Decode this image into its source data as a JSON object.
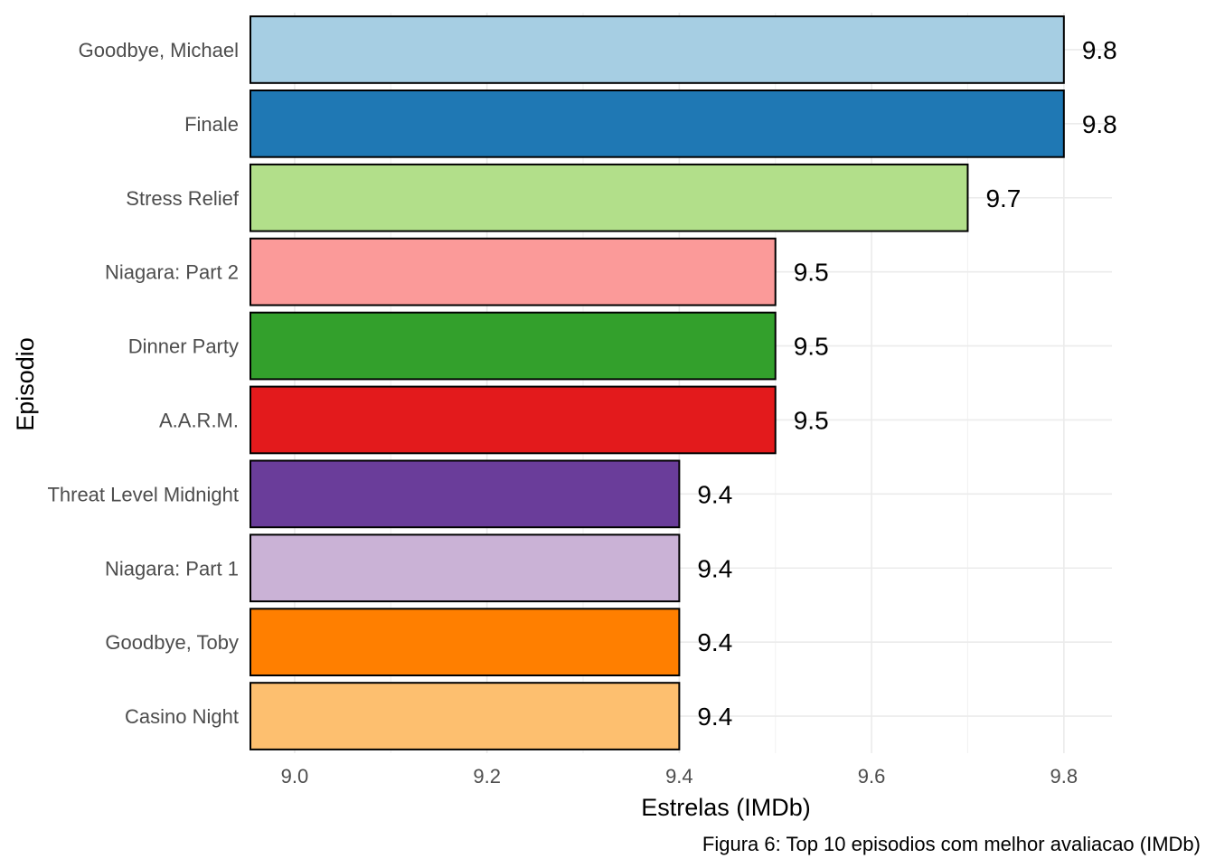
{
  "chart_data": {
    "type": "bar",
    "orientation": "horizontal",
    "categories": [
      "Goodbye, Michael",
      "Finale",
      "Stress Relief",
      "Niagara: Part 2",
      "Dinner Party",
      "A.A.R.M.",
      "Threat Level Midnight",
      "Niagara: Part 1",
      "Goodbye, Toby",
      "Casino Night"
    ],
    "values": [
      9.8,
      9.8,
      9.7,
      9.5,
      9.5,
      9.5,
      9.4,
      9.4,
      9.4,
      9.4
    ],
    "value_labels": [
      "9.8",
      "9.8",
      "9.7",
      "9.5",
      "9.5",
      "9.5",
      "9.4",
      "9.4",
      "9.4",
      "9.4"
    ],
    "colors": [
      "#a6cee3",
      "#1f78b4",
      "#b2df8a",
      "#fb9a99",
      "#33a02c",
      "#e31a1c",
      "#6a3d9a",
      "#cab2d6",
      "#ff7f00",
      "#fdbf6f"
    ],
    "xlabel": "Estrelas (IMDb)",
    "ylabel": "Episodio",
    "xticks": [
      9.0,
      9.2,
      9.4,
      9.6,
      9.8
    ],
    "xtick_labels": [
      "9.0",
      "9.2",
      "9.4",
      "9.6",
      "9.8"
    ],
    "xlim": [
      8.954,
      9.85
    ],
    "grid": true,
    "legend": "none",
    "caption": "Figura 6: Top 10 episodios com melhor avaliacao (IMDb)"
  }
}
